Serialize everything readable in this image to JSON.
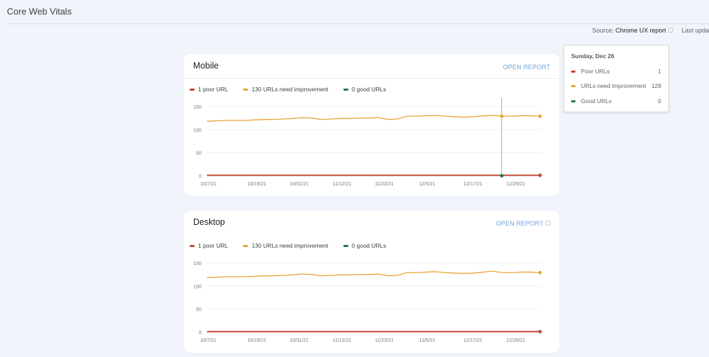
{
  "page": {
    "title": "Core Web Vitals",
    "source_label": "Source:",
    "source_value": "Chrome UX report",
    "last_updated": "Last upda"
  },
  "colors": {
    "poor": "#c5432f",
    "improve": "#e8a531",
    "good": "#1e7a4e"
  },
  "cards": [
    {
      "name": "Mobile",
      "open_report": "OPEN REPORT",
      "legend": [
        "1 poor URL",
        "130 URLs need improvement",
        "0 good URLs"
      ]
    },
    {
      "name": "Desktop",
      "open_report": "OPEN REPORT",
      "legend": [
        "1 poor URL",
        "130 URLs need improvement",
        "0 good URLs"
      ]
    }
  ],
  "tooltip": {
    "date": "Sunday, Dec 26",
    "rows": [
      {
        "label": "Poor URLs",
        "value": "1"
      },
      {
        "label": "URLs need improvement",
        "value": "129"
      },
      {
        "label": "Good URLs",
        "value": "0"
      }
    ]
  },
  "chart_data": [
    {
      "type": "line",
      "title": "Mobile",
      "ylim": [
        0,
        150
      ],
      "yticks": [
        "150",
        "100",
        "50",
        "0"
      ],
      "xticks": [
        "10/7/21",
        "10/19/21",
        "10/31/21",
        "11/12/21",
        "11/23/21",
        "12/5/21",
        "12/17/21",
        "12/29/21"
      ],
      "series": [
        {
          "name": "Poor URLs",
          "values": [
            1,
            1
          ]
        },
        {
          "name": "URLs need improvement",
          "values": [
            118,
            119,
            120,
            120,
            120,
            121,
            122,
            122,
            123,
            124,
            126,
            125,
            122,
            123,
            124,
            124,
            125,
            125,
            126,
            122,
            123,
            129,
            129,
            130,
            131,
            129,
            128,
            127,
            128,
            130,
            131,
            129,
            129,
            130,
            130,
            129
          ]
        },
        {
          "name": "Good URLs",
          "values": [
            0,
            0
          ]
        }
      ],
      "hover_index_fraction": 0.885
    },
    {
      "type": "line",
      "title": "Desktop",
      "ylim": [
        0,
        150
      ],
      "yticks": [
        "150",
        "100",
        "50",
        "0"
      ],
      "xticks": [
        "10/7/21",
        "10/19/21",
        "10/31/21",
        "11/12/21",
        "11/23/21",
        "12/5/21",
        "12/17/21",
        "12/29/21"
      ],
      "series": [
        {
          "name": "Poor URLs",
          "values": [
            1,
            1
          ]
        },
        {
          "name": "URLs need improvement",
          "values": [
            118,
            119,
            120,
            120,
            120,
            121,
            122,
            122,
            123,
            124,
            126,
            125,
            122,
            123,
            124,
            124,
            125,
            125,
            126,
            122,
            123,
            129,
            129,
            130,
            131,
            129,
            128,
            127,
            128,
            130,
            132,
            129,
            129,
            130,
            130,
            129
          ]
        },
        {
          "name": "Good URLs",
          "values": [
            0,
            0
          ]
        }
      ]
    }
  ]
}
